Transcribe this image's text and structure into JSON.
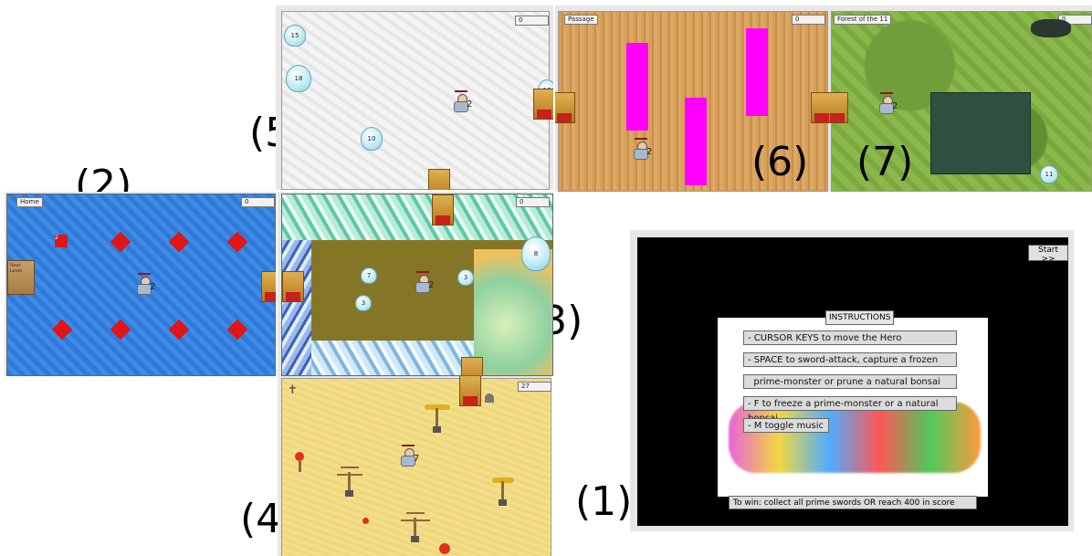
{
  "labels": {
    "p1": "(1)",
    "p2": "(2)",
    "p3": "(3)",
    "p4": "(4)",
    "p5": "(5)",
    "p6": "(6)",
    "p7": "(7)"
  },
  "panel1": {
    "start_button": "Start >>",
    "instructions_title": "INSTRUCTIONS",
    "instructions": [
      "- CURSOR KEYS to move the Hero",
      "- SPACE to sword-attack, capture a frozen",
      "  prime-monster or prune a natural bonsai",
      "- F to freeze a prime-monster or a natural bonsai",
      "- M toggle music"
    ],
    "win_text": "To win: collect all prime swords OR reach 400 in score"
  },
  "panel2": {
    "title": "Home",
    "score": "0",
    "sign_line1": "Next",
    "sign_line2": "Level",
    "red_square_num": "2",
    "hero_num": "2"
  },
  "panel3": {
    "score": "0",
    "hero_num": "2",
    "monsters": [
      "7",
      "3",
      "3",
      "8"
    ]
  },
  "panel4": {
    "score": "27",
    "hero_num": "7"
  },
  "panel5": {
    "score": "0",
    "hero_num": "2",
    "monsters": [
      "15",
      "18",
      "10",
      "16"
    ]
  },
  "panel6": {
    "title": "Passage",
    "score": "0",
    "hero_num": "2"
  },
  "panel7": {
    "title": "Forest of the 11",
    "score": "0",
    "hero_num": "2",
    "monster": "11"
  },
  "colors": {
    "magenta": "#ff00ff",
    "red": "#e01515",
    "water": "#2f7ad9",
    "sand": "#f3de8a",
    "cork": "#d49a55",
    "forest": "#8bb84a"
  }
}
